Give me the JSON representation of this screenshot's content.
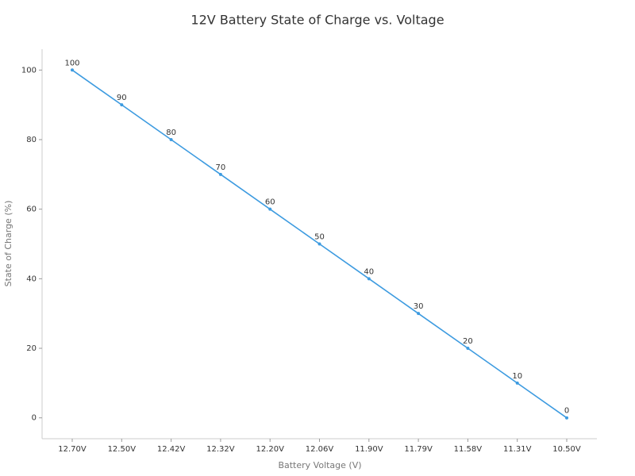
{
  "chart_data": {
    "type": "line",
    "title": "12V Battery State of Charge vs. Voltage",
    "x_label": "Battery Voltage (V)",
    "y_label": "State of Charge (%)",
    "categories": [
      "12.70V",
      "12.50V",
      "12.42V",
      "12.32V",
      "12.20V",
      "12.06V",
      "11.90V",
      "11.79V",
      "11.58V",
      "11.31V",
      "10.50V"
    ],
    "series": [
      {
        "name": "State of Charge",
        "color": "#3d9be0",
        "values": [
          100,
          90,
          80,
          70,
          60,
          50,
          40,
          30,
          20,
          10,
          0
        ]
      }
    ],
    "ylim": [
      -6,
      106
    ],
    "yticks": [
      0,
      20,
      40,
      60,
      80,
      100
    ],
    "grid": false
  }
}
